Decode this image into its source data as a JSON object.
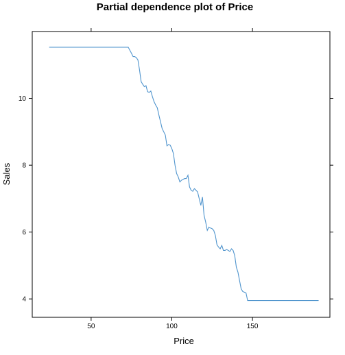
{
  "chart_data": {
    "type": "line",
    "title": "Partial dependence plot of Price",
    "xlabel": "Price",
    "ylabel": "Sales",
    "xlim": [
      13.5,
      198
    ],
    "ylim": [
      3.45,
      12.0
    ],
    "grid": false,
    "legend": "none",
    "x_ticks": [
      50,
      100,
      150
    ],
    "y_ticks": [
      4,
      6,
      8,
      10
    ],
    "x_tick_labels": [
      "50",
      "100",
      "150"
    ],
    "y_tick_labels": [
      "4",
      "6",
      "8",
      "10"
    ],
    "line_color": "#4f94cd",
    "series": [
      {
        "x": [
          24,
          35,
          50,
          60,
          70,
          73,
          75,
          76,
          77,
          78,
          79,
          80,
          81,
          82,
          83,
          84,
          85,
          86,
          87,
          88,
          89,
          90,
          91,
          92,
          93,
          94,
          95,
          96,
          97,
          98,
          99,
          100,
          101,
          102,
          103,
          104,
          105,
          106,
          107,
          108,
          109,
          110,
          111,
          112,
          113,
          114,
          115,
          116,
          117,
          118,
          119,
          120,
          121,
          122,
          123,
          124,
          125,
          126,
          127,
          128,
          129,
          130,
          131,
          132,
          133,
          134,
          135,
          136,
          137,
          138,
          139,
          140,
          141,
          142,
          143,
          144,
          145,
          146,
          147,
          148,
          149,
          150,
          151,
          152,
          153,
          154,
          155,
          156,
          157,
          160,
          170,
          180,
          191
        ],
        "y": [
          11.53,
          11.53,
          11.53,
          11.53,
          11.53,
          11.53,
          11.35,
          11.25,
          11.25,
          11.22,
          11.15,
          10.85,
          10.5,
          10.42,
          10.35,
          10.38,
          10.2,
          10.18,
          10.22,
          10.05,
          9.9,
          9.8,
          9.72,
          9.5,
          9.3,
          9.1,
          9.0,
          8.9,
          8.58,
          8.62,
          8.6,
          8.5,
          8.35,
          8.0,
          7.75,
          7.65,
          7.5,
          7.55,
          7.58,
          7.6,
          7.6,
          7.7,
          7.35,
          7.25,
          7.22,
          7.3,
          7.25,
          7.2,
          7.0,
          6.8,
          7.05,
          6.5,
          6.3,
          6.05,
          6.15,
          6.12,
          6.1,
          6.05,
          5.9,
          5.62,
          5.55,
          5.5,
          5.6,
          5.45,
          5.45,
          5.48,
          5.45,
          5.42,
          5.5,
          5.45,
          5.3,
          4.95,
          4.8,
          4.55,
          4.3,
          4.22,
          4.2,
          4.18,
          3.95,
          3.95,
          3.95,
          3.95,
          3.95,
          3.95,
          3.95,
          3.95,
          3.95,
          3.95,
          3.95,
          3.95,
          3.95,
          3.95,
          3.95
        ]
      }
    ]
  }
}
